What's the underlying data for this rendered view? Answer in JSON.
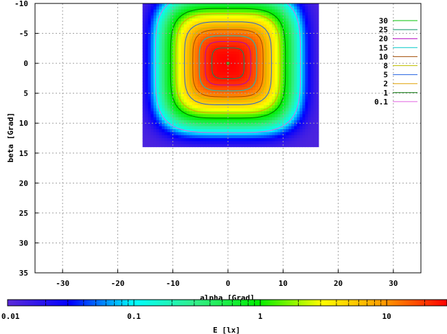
{
  "chart_data": {
    "type": "heatmap",
    "xlabel": "alpha [Grad]",
    "ylabel": "beta [Grad]",
    "x_range": [
      -35,
      35
    ],
    "y_range": [
      -10,
      35
    ],
    "y_inverted": true,
    "x_ticks": [
      -30,
      -20,
      -10,
      0,
      10,
      20,
      30
    ],
    "y_ticks": [
      -10,
      -5,
      0,
      5,
      10,
      15,
      20,
      25,
      30,
      35
    ],
    "grid": true,
    "data_extent": {
      "alpha": [
        -15.5,
        16.5
      ],
      "beta": [
        -10,
        14
      ]
    },
    "peak": {
      "alpha": 0,
      "beta": 0
    },
    "colorbar": {
      "label": "E [lx]",
      "scale": "log",
      "range": [
        0.01,
        30
      ],
      "tick_labels": [
        "0.01",
        "0.1",
        "1",
        "10"
      ],
      "tick_values": [
        0.01,
        0.1,
        1,
        10
      ],
      "colors": [
        "#5b2bd8",
        "#0000ff",
        "#00ffff",
        "#33ee88",
        "#00ee00",
        "#ffff00",
        "#ff9a00",
        "#ff0000"
      ]
    },
    "legend": {
      "placement": "top-right",
      "entries": [
        {
          "label": "30",
          "color": "#00c000"
        },
        {
          "label": "25",
          "color": "#008f5f"
        },
        {
          "label": "20",
          "color": "#b000c0"
        },
        {
          "label": "15",
          "color": "#00c8c8"
        },
        {
          "label": "10",
          "color": "#a04800"
        },
        {
          "label": "8",
          "color": "#c0c000"
        },
        {
          "label": "5",
          "color": "#2060e0"
        },
        {
          "label": "2",
          "color": "#e0a000"
        },
        {
          "label": "1",
          "color": "#007000"
        },
        {
          "label": "0.1",
          "color": "#e060e0"
        }
      ]
    },
    "contour_levels": [
      0.1,
      1,
      2,
      5,
      8,
      10,
      15,
      20,
      25,
      30
    ]
  }
}
